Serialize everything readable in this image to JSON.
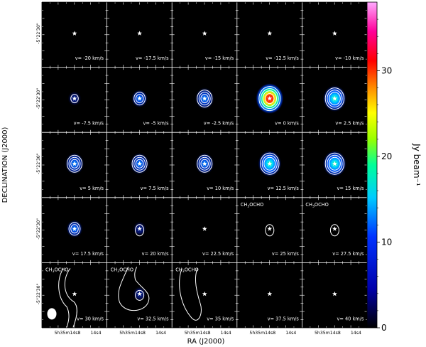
{
  "axes": {
    "xlabel": "RA (J2000)",
    "ylabel": "DECLINATION (J2000)",
    "dec_tick": "-5°22'30\"",
    "ra_ticks": [
      "5h35m14s8",
      "14s4"
    ]
  },
  "colorbar": {
    "label": "Jy beam⁻¹",
    "ticks": [
      0,
      10,
      20,
      30
    ],
    "range": [
      0,
      38
    ]
  },
  "panels": [
    {
      "v": "v= -20 km/s",
      "peak": 0,
      "species": "",
      "contour": "none"
    },
    {
      "v": "v= -17.5 km/s",
      "peak": 0,
      "species": "",
      "contour": "none"
    },
    {
      "v": "v= -15 km/s",
      "peak": 0,
      "species": "",
      "contour": "none"
    },
    {
      "v": "v= -12.5 km/s",
      "peak": 0,
      "species": "",
      "contour": "none"
    },
    {
      "v": "v= -10 km/s",
      "peak": 0,
      "species": "",
      "contour": "none"
    },
    {
      "v": "v= -7.5 km/s",
      "peak": 4,
      "species": "",
      "contour": "compact"
    },
    {
      "v": "v= -5 km/s",
      "peak": 8,
      "species": "",
      "contour": "compact"
    },
    {
      "v": "v= -2.5 km/s",
      "peak": 9,
      "species": "",
      "contour": "compact"
    },
    {
      "v": "v= 0 km/s",
      "peak": 32,
      "species": "",
      "contour": "compact"
    },
    {
      "v": "v= 2.5 km/s",
      "peak": 22,
      "species": "",
      "contour": "compact"
    },
    {
      "v": "v= 5 km/s",
      "peak": 11,
      "species": "",
      "contour": "compact"
    },
    {
      "v": "v= 7.5 km/s",
      "peak": 10,
      "species": "",
      "contour": "compact"
    },
    {
      "v": "v= 10 km/s",
      "peak": 12,
      "species": "",
      "contour": "compact"
    },
    {
      "v": "v= 12.5 km/s",
      "peak": 19,
      "species": "",
      "contour": "compact"
    },
    {
      "v": "v= 15 km/s",
      "peak": 17,
      "species": "",
      "contour": "compact"
    },
    {
      "v": "v= 17.5 km/s",
      "peak": 7,
      "species": "",
      "contour": "compact"
    },
    {
      "v": "v= 20 km/s",
      "peak": 4,
      "species": "",
      "contour": "small"
    },
    {
      "v": "v= 22.5 km/s",
      "peak": 0,
      "species": "",
      "contour": "none"
    },
    {
      "v": "v= 25 km/s",
      "peak": 2,
      "species": "CH3OCHO",
      "contour": "small"
    },
    {
      "v": "v= 27.5 km/s",
      "peak": 2,
      "species": "CH3OCHO",
      "contour": "small"
    },
    {
      "v": "v= 30 km/s",
      "peak": 2,
      "species": "CH3OCHO",
      "contour": "arc-left"
    },
    {
      "v": "v= 32.5 km/s",
      "peak": 3,
      "species": "CH3OCHO",
      "contour": "blob"
    },
    {
      "v": "v= 35 km/s",
      "peak": 2,
      "species": "CH3OCHO",
      "contour": "arc"
    },
    {
      "v": "v= 37.5 km/s",
      "peak": 0,
      "species": "",
      "contour": "none"
    },
    {
      "v": "v= 40 km/s",
      "peak": 0,
      "species": "",
      "contour": "none"
    }
  ]
}
